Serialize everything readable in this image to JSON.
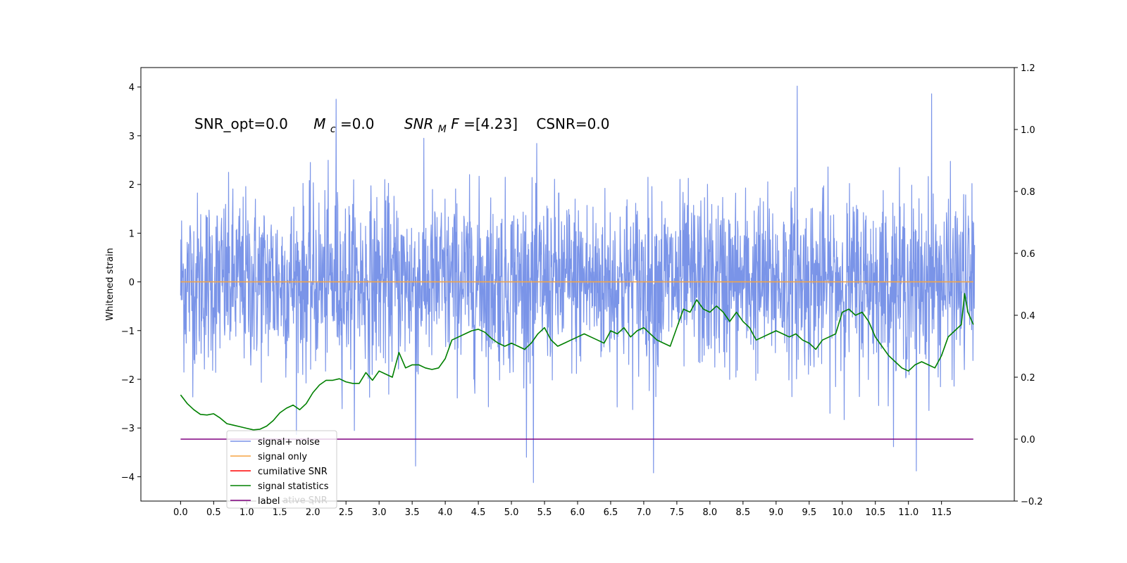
{
  "chart_data": {
    "type": "line",
    "title": "",
    "xlabel": "",
    "ylabel": "Whitened strain",
    "xlim": [
      -0.6,
      12.6
    ],
    "ylim": [
      -4.5,
      4.4
    ],
    "y2lim": [
      -0.2,
      1.2
    ],
    "x_ticks": [
      0.0,
      0.5,
      1.0,
      1.5,
      2.0,
      2.5,
      3.0,
      3.5,
      4.0,
      4.5,
      5.0,
      5.5,
      6.0,
      6.5,
      7.0,
      7.5,
      8.0,
      8.5,
      9.0,
      9.5,
      10.0,
      10.5,
      11.0,
      11.5
    ],
    "x_tick_labels": [
      "0.0",
      "0.5",
      "1.0",
      "1.5",
      "2.0",
      "2.5",
      "3.0",
      "3.5",
      "4.0",
      "4.5",
      "5.0",
      "5.5",
      "6.0",
      "6.5",
      "7.0",
      "7.5",
      "8.0",
      "8.5",
      "9.0",
      "9.5",
      "10.0",
      "10.5",
      "11.0",
      "11.5"
    ],
    "y_ticks": [
      4,
      3,
      2,
      1,
      0,
      -1,
      -2,
      -3,
      -4
    ],
    "y_tick_labels": [
      "4",
      "3",
      "2",
      "1",
      "0",
      "−1",
      "−2",
      "−3",
      "−4"
    ],
    "y2_ticks": [
      1.2,
      1.0,
      0.8,
      0.6,
      0.4,
      0.2,
      0.0,
      -0.2
    ],
    "y2_tick_labels": [
      "1.2",
      "1.0",
      "0.8",
      "0.6",
      "0.4",
      "0.2",
      "0.0",
      "−0.2"
    ],
    "annotation": {
      "snr_opt": "SNR_opt=0.0",
      "mc_symbol": "M",
      "mc_sub": "c",
      "mc_value": "=0.0",
      "snr_mf_symbol": "SNR",
      "snr_mf_sub": "M",
      "snr_mf_f": "F",
      "snr_mf_value": "=[4.23]",
      "csnr": "CSNR=0.0"
    },
    "noise": {
      "x_range": [
        0.0,
        12.0
      ],
      "n_points": 2400,
      "core_sigma": 0.9,
      "upper_peak": 4.02,
      "lower_peak": -4.12
    },
    "series": [
      {
        "name": "signal+ noise",
        "color": "#7a94e8",
        "axis": "left",
        "kind": "noise"
      },
      {
        "name": "signal only",
        "color": "#f5a442",
        "axis": "left",
        "x": [
          0.0,
          11.98
        ],
        "y": [
          0.0,
          0.0
        ]
      },
      {
        "name": "cumilative SNR",
        "color": "#ff0000",
        "axis": "right",
        "x": [],
        "y": []
      },
      {
        "name": "signal statistics",
        "color": "#008000",
        "axis": "right",
        "x": [
          0.0,
          0.1,
          0.2,
          0.3,
          0.4,
          0.5,
          0.6,
          0.7,
          0.8,
          0.9,
          1.0,
          1.1,
          1.2,
          1.3,
          1.4,
          1.5,
          1.6,
          1.7,
          1.8,
          1.9,
          2.0,
          2.1,
          2.2,
          2.3,
          2.4,
          2.5,
          2.6,
          2.7,
          2.8,
          2.9,
          3.0,
          3.1,
          3.2,
          3.3,
          3.4,
          3.5,
          3.6,
          3.7,
          3.8,
          3.9,
          4.0,
          4.1,
          4.2,
          4.3,
          4.4,
          4.5,
          4.6,
          4.7,
          4.8,
          4.9,
          5.0,
          5.1,
          5.2,
          5.3,
          5.4,
          5.5,
          5.6,
          5.7,
          5.8,
          5.9,
          6.0,
          6.1,
          6.2,
          6.3,
          6.4,
          6.5,
          6.6,
          6.7,
          6.8,
          6.9,
          7.0,
          7.1,
          7.2,
          7.3,
          7.4,
          7.5,
          7.6,
          7.7,
          7.8,
          7.9,
          8.0,
          8.1,
          8.2,
          8.3,
          8.4,
          8.5,
          8.6,
          8.7,
          8.8,
          8.9,
          9.0,
          9.1,
          9.2,
          9.3,
          9.4,
          9.5,
          9.6,
          9.7,
          9.8,
          9.9,
          10.0,
          10.1,
          10.2,
          10.3,
          10.4,
          10.5,
          10.6,
          10.7,
          10.8,
          10.9,
          11.0,
          11.1,
          11.2,
          11.3,
          11.4,
          11.5,
          11.6,
          11.7,
          11.8,
          11.85,
          11.9,
          11.98
        ],
        "y": [
          0.143,
          0.115,
          0.095,
          0.08,
          0.078,
          0.082,
          0.068,
          0.05,
          0.045,
          0.04,
          0.035,
          0.03,
          0.032,
          0.042,
          0.06,
          0.085,
          0.1,
          0.11,
          0.095,
          0.115,
          0.15,
          0.175,
          0.19,
          0.19,
          0.195,
          0.185,
          0.18,
          0.18,
          0.215,
          0.19,
          0.22,
          0.21,
          0.2,
          0.28,
          0.23,
          0.24,
          0.24,
          0.23,
          0.225,
          0.23,
          0.26,
          0.32,
          0.33,
          0.34,
          0.35,
          0.355,
          0.345,
          0.325,
          0.31,
          0.3,
          0.31,
          0.3,
          0.29,
          0.31,
          0.34,
          0.36,
          0.32,
          0.3,
          0.31,
          0.32,
          0.33,
          0.34,
          0.33,
          0.32,
          0.31,
          0.35,
          0.34,
          0.36,
          0.33,
          0.35,
          0.36,
          0.34,
          0.32,
          0.31,
          0.3,
          0.36,
          0.42,
          0.41,
          0.45,
          0.42,
          0.41,
          0.43,
          0.41,
          0.38,
          0.41,
          0.38,
          0.36,
          0.32,
          0.33,
          0.34,
          0.35,
          0.34,
          0.33,
          0.34,
          0.32,
          0.31,
          0.29,
          0.32,
          0.33,
          0.34,
          0.41,
          0.42,
          0.4,
          0.41,
          0.38,
          0.33,
          0.3,
          0.27,
          0.25,
          0.23,
          0.22,
          0.24,
          0.25,
          0.24,
          0.23,
          0.27,
          0.33,
          0.35,
          0.37,
          0.47,
          0.41,
          0.37
        ]
      },
      {
        "name": "label",
        "color": "#800080",
        "axis": "right",
        "x": [
          0.0,
          11.98
        ],
        "y": [
          0.0,
          0.0
        ]
      }
    ],
    "legend": {
      "position": "lower-left",
      "entries": [
        "signal+ noise",
        "signal only",
        "cumilative SNR",
        "signal statistics",
        "label"
      ],
      "ghost_text": "cumilative SNR"
    },
    "grid": false
  }
}
